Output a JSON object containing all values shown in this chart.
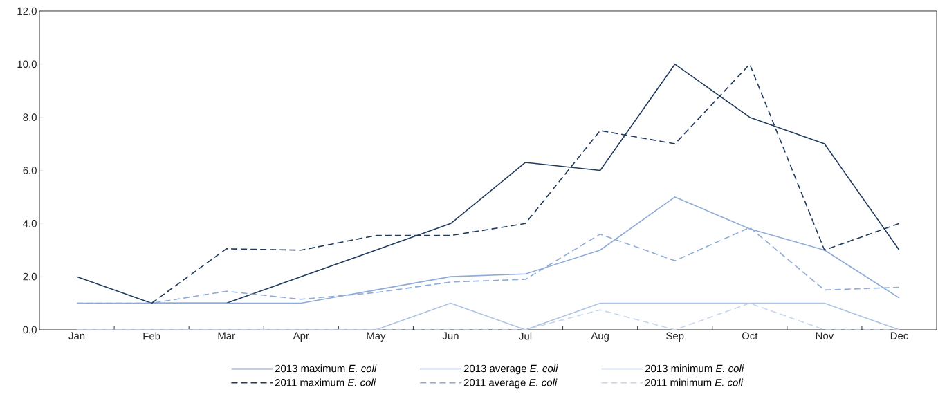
{
  "chart_data": {
    "type": "line",
    "categories": [
      "Jan",
      "Feb",
      "Mar",
      "Apr",
      "May",
      "Jun",
      "Jul",
      "Aug",
      "Sep",
      "Oct",
      "Nov",
      "Dec"
    ],
    "ylim": [
      0,
      12
    ],
    "yticks": [
      {
        "value": 0,
        "label": "0.0"
      },
      {
        "value": 2,
        "label": "2.0"
      },
      {
        "value": 4,
        "label": "4.0"
      },
      {
        "value": 6,
        "label": "6.0"
      },
      {
        "value": 8,
        "label": "8.0"
      },
      {
        "value": 10,
        "label": "10.0"
      },
      {
        "value": 12,
        "label": "12.0"
      }
    ],
    "grid": false,
    "legend": "bottom",
    "marker": "none",
    "series": [
      {
        "name": "2013 maximum *E. coli*",
        "color": "#1f3a5c",
        "line_style": "solid",
        "values": [
          2,
          1,
          1,
          2,
          3,
          4,
          6.3,
          6,
          10,
          8,
          7,
          3
        ]
      },
      {
        "name": "2013 average *E. coli*",
        "color": "#8eaad6",
        "line_style": "solid",
        "values": [
          1,
          1,
          1,
          1,
          1.5,
          2,
          2.1,
          3,
          5,
          3.8,
          3,
          1.2
        ]
      },
      {
        "name": "2013 minimum *E. coli*",
        "color": "#adc3e2",
        "line_style": "solid",
        "values": [
          0,
          0,
          0,
          0,
          0,
          1,
          0,
          1,
          1,
          1,
          1,
          0
        ]
      },
      {
        "name": "2011 maximum *E. coli*",
        "color": "#1f3a5c",
        "line_style": "dashed",
        "values": [
          null,
          1,
          3.05,
          3,
          3.55,
          3.55,
          4,
          7.5,
          7,
          10,
          3,
          4
        ]
      },
      {
        "name": "2011 average *E. coli*",
        "color": "#8eaad6",
        "line_style": "dashed",
        "values": [
          1,
          1,
          1.45,
          1.15,
          1.4,
          1.8,
          1.9,
          3.6,
          2.6,
          3.85,
          1.5,
          1.6
        ]
      },
      {
        "name": "2011 minimum *E. coli*",
        "color": "#c6d6ec",
        "line_style": "dashed",
        "values": [
          0,
          0,
          0,
          0,
          0,
          0,
          0,
          0.75,
          0,
          1,
          0,
          0
        ]
      }
    ]
  }
}
